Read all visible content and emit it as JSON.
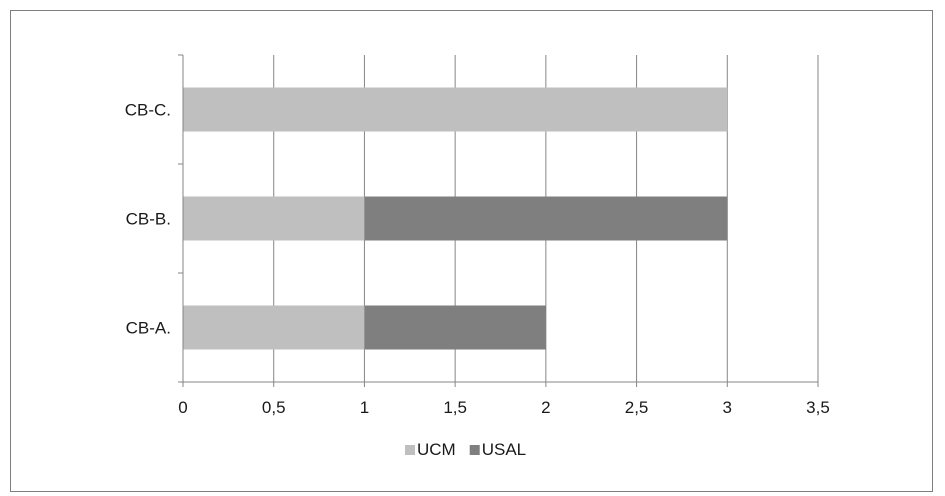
{
  "chart_data": {
    "type": "bar",
    "orientation": "horizontal",
    "stacked": true,
    "title": "",
    "xlabel": "",
    "ylabel": "",
    "categories": [
      "CB-A.",
      "CB-B.",
      "CB-C."
    ],
    "series": [
      {
        "name": "UCM",
        "color": "#bfbfbf",
        "values": [
          1,
          1,
          3
        ]
      },
      {
        "name": "USAL",
        "color": "#7f7f7f",
        "values": [
          1,
          2,
          0
        ]
      }
    ],
    "xlim": [
      0,
      3.5
    ],
    "x_ticks": [
      "0",
      "0,5",
      "1",
      "1,5",
      "2",
      "2,5",
      "3",
      "3,5"
    ],
    "x_tick_values": [
      0,
      0.5,
      1,
      1.5,
      2,
      2.5,
      3,
      3.5
    ],
    "grid": "vertical",
    "legend_position": "bottom"
  }
}
